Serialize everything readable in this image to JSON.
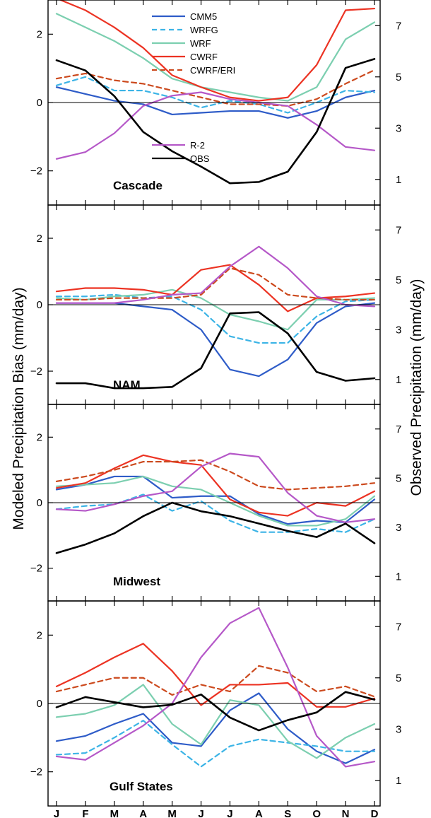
{
  "chart_data": {
    "type": "line",
    "ylabel_left": "Modeled Precipitation Bias (mm/day)",
    "ylabel_right": "Observed Precipitation (mm/day)",
    "x": [
      "J",
      "F",
      "M",
      "A",
      "M",
      "J",
      "J",
      "A",
      "S",
      "O",
      "N",
      "D"
    ],
    "left_axis": {
      "ylim": [
        -3,
        3
      ],
      "ticks": [
        -2,
        0,
        2
      ]
    },
    "right_axis": {
      "ylim": [
        0,
        8
      ],
      "ticks": [
        1,
        3,
        5,
        7
      ]
    },
    "grid": false,
    "legend_placement": "top-center of first panel",
    "series_styles": [
      {
        "name": "CMM5",
        "color": "#2e5cc8",
        "dash": "solid"
      },
      {
        "name": "WRFG",
        "color": "#3cb4e6",
        "dash": "dashed"
      },
      {
        "name": "WRF",
        "color": "#7ccfb0",
        "dash": "solid"
      },
      {
        "name": "CWRF",
        "color": "#ec3323",
        "dash": "solid"
      },
      {
        "name": "CWRF/ERI",
        "color": "#cc4a1e",
        "dash": "dashed"
      },
      {
        "name": "R-2",
        "color": "#b558c8",
        "dash": "solid"
      },
      {
        "name": "OBS",
        "color": "#000000",
        "dash": "solid",
        "axis": "right"
      }
    ],
    "panels": [
      {
        "region": "Cascade",
        "series": [
          {
            "name": "CMM5",
            "values": [
              0.45,
              0.25,
              0.05,
              -0.05,
              -0.35,
              -0.3,
              -0.25,
              -0.25,
              -0.45,
              -0.25,
              0.15,
              0.35
            ]
          },
          {
            "name": "WRFG",
            "values": [
              0.5,
              0.75,
              0.35,
              0.35,
              0.15,
              -0.15,
              0.05,
              -0.05,
              -0.3,
              0.0,
              0.35,
              0.3
            ]
          },
          {
            "name": "WRF",
            "values": [
              2.6,
              2.2,
              1.8,
              1.3,
              0.7,
              0.45,
              0.3,
              0.15,
              0.05,
              0.45,
              1.85,
              2.35
            ]
          },
          {
            "name": "CWRF",
            "values": [
              3.05,
              2.7,
              2.2,
              1.6,
              0.8,
              0.45,
              0.15,
              0.05,
              0.15,
              1.1,
              2.7,
              2.75
            ]
          },
          {
            "name": "CWRF/ERI",
            "values": [
              0.7,
              0.85,
              0.65,
              0.55,
              0.35,
              0.15,
              -0.05,
              -0.05,
              -0.1,
              0.1,
              0.55,
              0.95
            ]
          },
          {
            "name": "R-2",
            "values": [
              -1.65,
              -1.45,
              -0.9,
              -0.1,
              0.2,
              0.3,
              0.1,
              0.0,
              -0.1,
              -0.65,
              -1.3,
              -1.4
            ]
          },
          {
            "name": "OBS",
            "values": [
              5.65,
              5.25,
              4.25,
              2.85,
              2.1,
              1.5,
              0.85,
              0.9,
              1.3,
              2.85,
              5.35,
              5.7
            ]
          }
        ]
      },
      {
        "region": "NAM",
        "series": [
          {
            "name": "CMM5",
            "values": [
              0.05,
              0.05,
              0.05,
              -0.05,
              -0.15,
              -0.75,
              -1.95,
              -2.15,
              -1.65,
              -0.55,
              -0.05,
              0.05
            ]
          },
          {
            "name": "WRFG",
            "values": [
              0.25,
              0.25,
              0.3,
              0.2,
              0.25,
              -0.15,
              -0.95,
              -1.15,
              -1.15,
              -0.35,
              0.1,
              0.15
            ]
          },
          {
            "name": "WRF",
            "values": [
              0.2,
              0.15,
              0.25,
              0.3,
              0.45,
              0.2,
              -0.3,
              -0.5,
              -0.75,
              0.15,
              0.15,
              0.2
            ]
          },
          {
            "name": "CWRF",
            "values": [
              0.4,
              0.5,
              0.5,
              0.45,
              0.3,
              1.05,
              1.2,
              0.6,
              -0.2,
              0.2,
              0.25,
              0.35
            ]
          },
          {
            "name": "CWRF/ERI",
            "values": [
              0.15,
              0.15,
              0.2,
              0.2,
              0.2,
              0.3,
              1.1,
              0.9,
              0.3,
              0.2,
              0.15,
              0.15
            ]
          },
          {
            "name": "R-2",
            "values": [
              0.05,
              0.05,
              0.05,
              0.15,
              0.3,
              0.35,
              1.15,
              1.75,
              1.1,
              0.25,
              0.0,
              -0.05
            ]
          },
          {
            "name": "OBS",
            "values": [
              0.85,
              0.85,
              0.65,
              0.65,
              0.7,
              1.45,
              3.65,
              3.7,
              2.85,
              1.3,
              0.95,
              1.05
            ]
          }
        ]
      },
      {
        "region": "Midwest",
        "series": [
          {
            "name": "CMM5",
            "values": [
              0.4,
              0.55,
              0.8,
              0.8,
              0.15,
              0.2,
              0.2,
              -0.35,
              -0.65,
              -0.55,
              -0.6,
              0.1
            ]
          },
          {
            "name": "WRFG",
            "values": [
              -0.2,
              -0.1,
              -0.05,
              0.25,
              -0.25,
              0.05,
              -0.55,
              -0.9,
              -0.9,
              -0.8,
              -0.9,
              -0.5
            ]
          },
          {
            "name": "WRF",
            "values": [
              0.5,
              0.55,
              0.6,
              0.8,
              0.5,
              0.4,
              0.0,
              -0.4,
              -0.7,
              -0.7,
              -0.5,
              0.2
            ]
          },
          {
            "name": "CWRF",
            "values": [
              0.45,
              0.6,
              1.05,
              1.45,
              1.25,
              1.15,
              0.1,
              -0.3,
              -0.4,
              0.0,
              -0.1,
              0.35
            ]
          },
          {
            "name": "CWRF/ERI",
            "values": [
              0.65,
              0.8,
              1.0,
              1.25,
              1.25,
              1.3,
              0.95,
              0.5,
              0.4,
              0.45,
              0.5,
              0.6
            ]
          },
          {
            "name": "R-2",
            "values": [
              -0.2,
              -0.25,
              -0.05,
              0.2,
              0.35,
              1.1,
              1.5,
              1.4,
              0.3,
              -0.4,
              -0.6,
              -0.5
            ]
          },
          {
            "name": "OBS",
            "values": [
              1.95,
              2.3,
              2.75,
              3.45,
              4.0,
              3.65,
              3.45,
              3.15,
              2.85,
              2.6,
              3.15,
              2.35
            ]
          }
        ]
      },
      {
        "region": "Gulf States",
        "series": [
          {
            "name": "CMM5",
            "values": [
              -1.1,
              -0.95,
              -0.6,
              -0.3,
              -1.15,
              -1.25,
              -0.2,
              0.3,
              -0.75,
              -1.4,
              -1.75,
              -1.35
            ]
          },
          {
            "name": "WRFG",
            "values": [
              -1.5,
              -1.45,
              -1.0,
              -0.5,
              -1.2,
              -1.85,
              -1.25,
              -1.05,
              -1.15,
              -1.25,
              -1.4,
              -1.4
            ]
          },
          {
            "name": "WRF",
            "values": [
              -0.4,
              -0.3,
              -0.05,
              0.55,
              -0.6,
              -1.2,
              0.1,
              -0.05,
              -1.1,
              -1.6,
              -1.0,
              -0.6
            ]
          },
          {
            "name": "CWRF",
            "values": [
              0.5,
              0.9,
              1.35,
              1.75,
              0.95,
              -0.05,
              0.55,
              0.55,
              0.6,
              -0.1,
              -0.1,
              0.15
            ]
          },
          {
            "name": "CWRF/ERI",
            "values": [
              0.35,
              0.55,
              0.75,
              0.75,
              0.25,
              0.55,
              0.35,
              1.1,
              0.9,
              0.35,
              0.5,
              0.2
            ]
          },
          {
            "name": "R-2",
            "values": [
              -1.55,
              -1.65,
              -1.15,
              -0.65,
              0.0,
              1.35,
              2.35,
              2.8,
              1.05,
              -0.95,
              -1.85,
              -1.7
            ]
          },
          {
            "name": "OBS",
            "values": [
              3.85,
              4.25,
              4.05,
              3.85,
              3.95,
              4.35,
              3.45,
              2.95,
              3.35,
              3.65,
              4.45,
              4.15
            ]
          }
        ]
      }
    ]
  }
}
